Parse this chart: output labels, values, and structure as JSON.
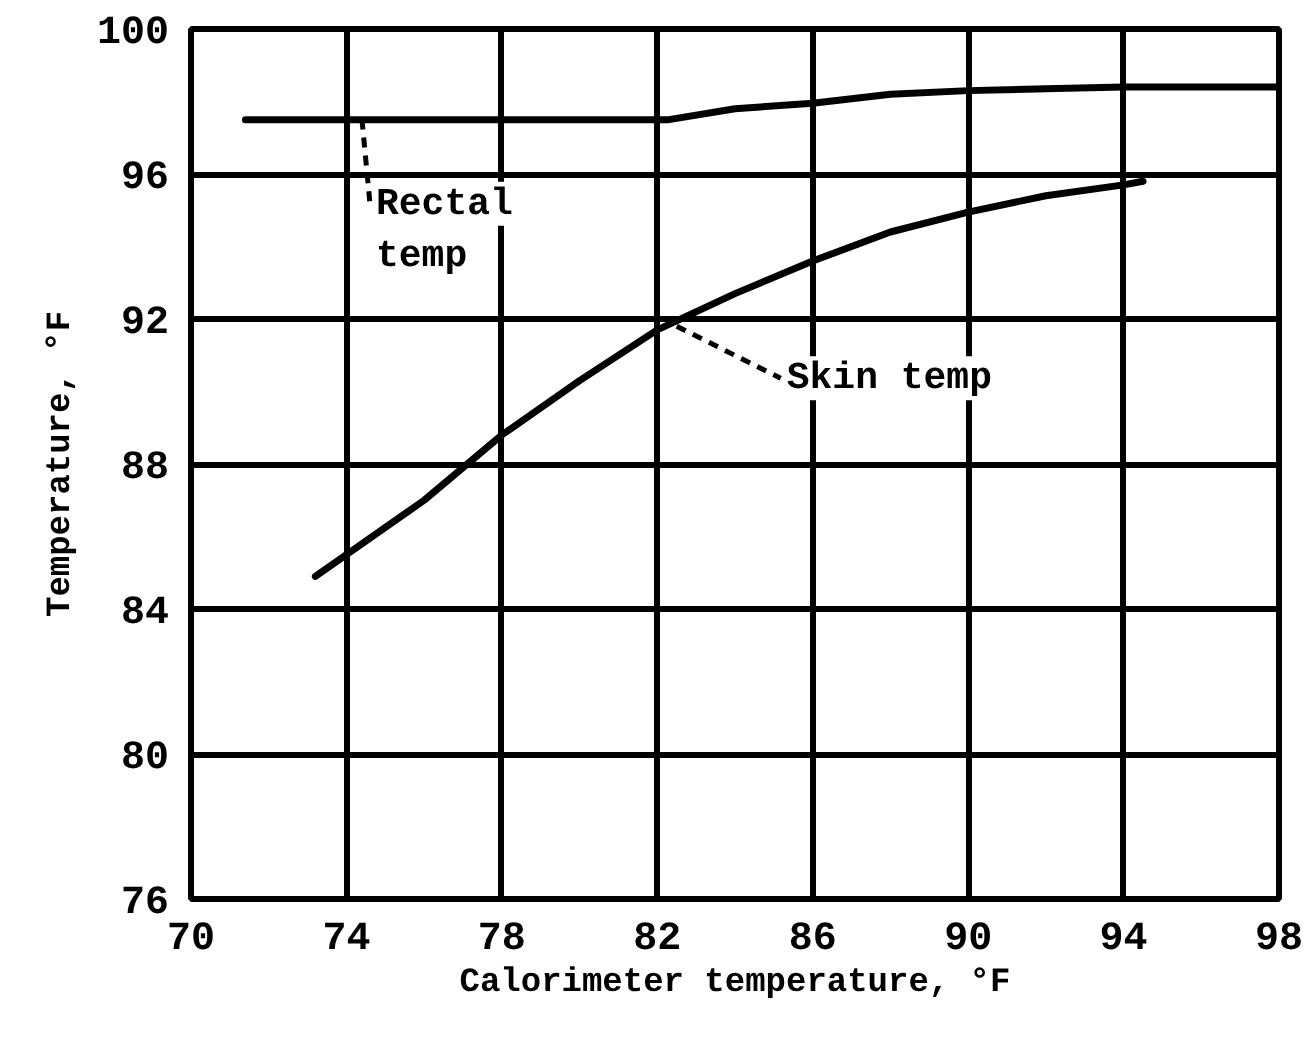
{
  "chart_data": {
    "type": "line",
    "xlabel": "Calorimeter temperature, °F",
    "ylabel": "Temperature, °F",
    "series": [
      {
        "color": "#000000",
        "x": [
          71.4,
          74,
          78,
          82.3,
          84,
          86,
          88,
          90,
          92,
          94,
          98
        ],
        "values": [
          97.5,
          97.5,
          97.5,
          97.5,
          97.8,
          97.95,
          98.2,
          98.3,
          98.35,
          98.4,
          98.4
        ]
      },
      {
        "color": "#000000",
        "x": [
          73.2,
          74,
          76,
          78,
          80,
          82,
          84,
          86,
          88,
          90,
          92,
          94,
          94.5
        ],
        "values": [
          84.9,
          85.5,
          87.0,
          88.8,
          90.3,
          91.7,
          92.7,
          93.6,
          94.4,
          94.95,
          95.4,
          95.7,
          95.8
        ]
      }
    ],
    "annotations": [
      {
        "text": "Rectal\ntemp",
        "x": 74.4,
        "y": 97.5
      },
      {
        "text": "Skin temp",
        "x": 82.5,
        "y": 91.8
      }
    ],
    "xlim": [
      70,
      98
    ],
    "xticks": [
      70,
      74,
      78,
      82,
      86,
      90,
      94,
      98
    ],
    "ylim": [
      76,
      100
    ],
    "yticks": [
      76,
      80,
      84,
      88,
      92,
      96,
      100
    ],
    "grid": true,
    "marker": "none",
    "line_style": "solid"
  }
}
